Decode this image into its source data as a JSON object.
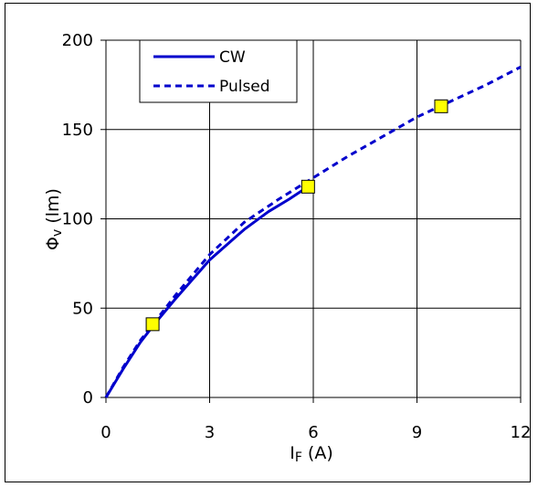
{
  "chart_data": {
    "type": "line",
    "xlabel": {
      "main": "I",
      "sub": "F",
      "unit": " (A)"
    },
    "ylabel": {
      "main": "Φ",
      "sub": "v",
      "unit": " (lm)"
    },
    "xlim": [
      0,
      12
    ],
    "ylim": [
      0,
      200
    ],
    "xticks": [
      0,
      3,
      6,
      9,
      12
    ],
    "yticks": [
      0,
      50,
      100,
      150,
      200
    ],
    "grid": true,
    "legend_position": "top-left",
    "series": [
      {
        "name": "CW",
        "style": "solid",
        "color": "#0000cc",
        "x": [
          0,
          0.5,
          1.0,
          1.4,
          2.0,
          3.0,
          4.0,
          4.7,
          5.3,
          5.85
        ],
        "y": [
          0,
          16,
          31,
          41,
          55,
          77,
          94,
          104,
          111,
          118
        ]
      },
      {
        "name": "Pulsed",
        "style": "dashed",
        "color": "#0000cc",
        "x": [
          0,
          0.5,
          1.0,
          1.4,
          2.0,
          3.0,
          4.0,
          5.0,
          6.0,
          7.0,
          8.0,
          9.0,
          10.0,
          11.0,
          12.0
        ],
        "y": [
          0,
          17,
          32,
          42,
          57,
          80,
          98,
          111,
          123,
          135,
          146,
          157,
          166,
          175,
          185
        ]
      }
    ],
    "markers": {
      "color": "#ffff00",
      "points": [
        {
          "x": 1.35,
          "y": 41
        },
        {
          "x": 5.85,
          "y": 118
        },
        {
          "x": 9.7,
          "y": 163
        }
      ]
    }
  }
}
